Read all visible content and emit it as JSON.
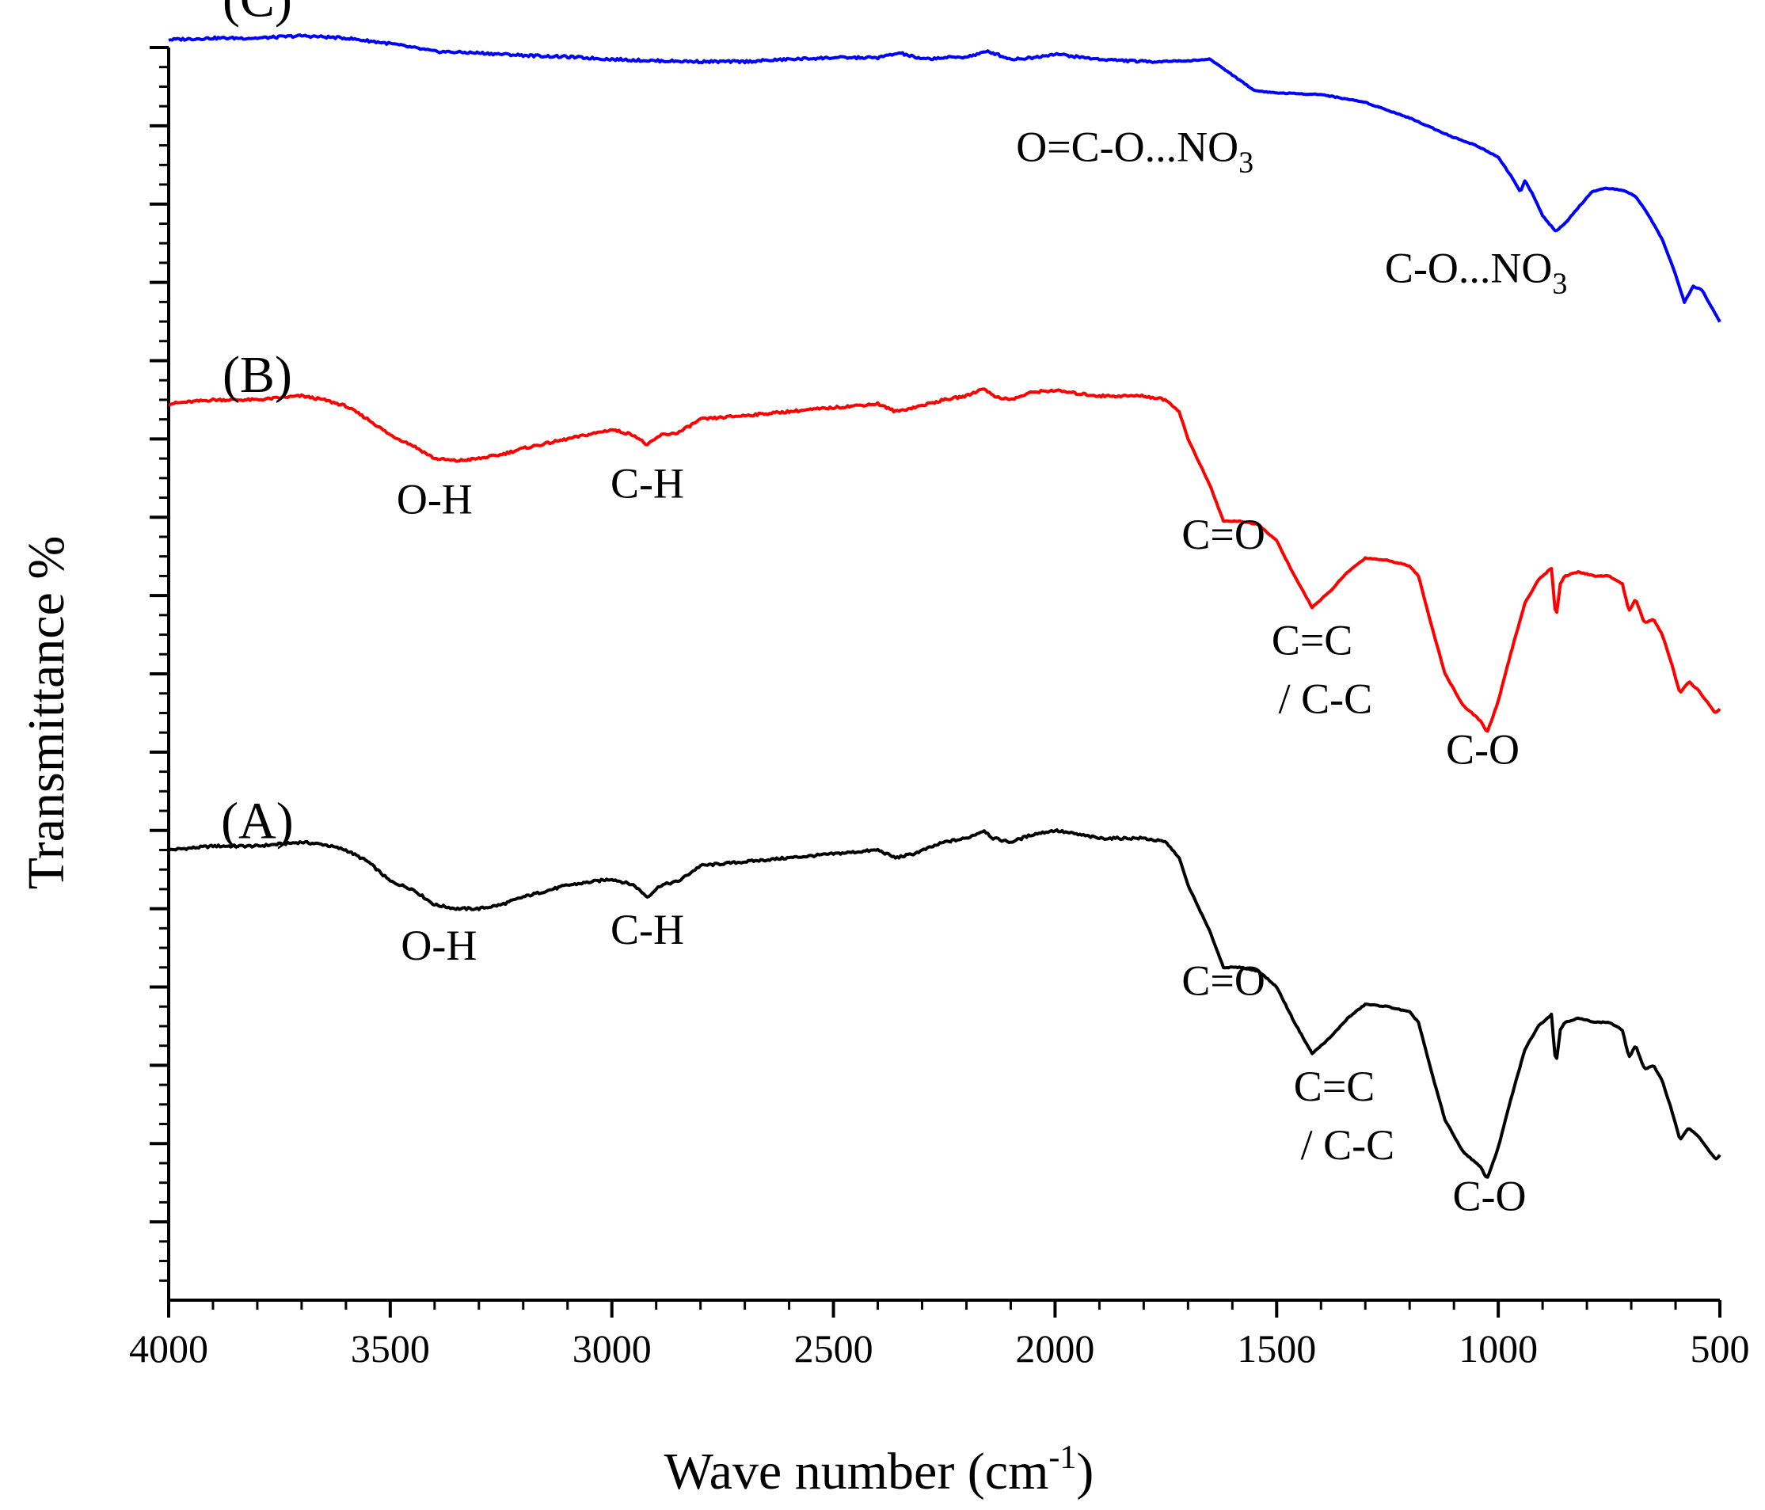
{
  "chart_data": {
    "type": "line",
    "title": "",
    "xlabel": "Wave number (cm",
    "xlabel_sup": "-1",
    "xlabel_close": ")",
    "ylabel": "Transmittance %",
    "xlim": [
      4000,
      500
    ],
    "x_reversed": true,
    "ylim": [
      0,
      16
    ],
    "x_ticks": [
      4000,
      3500,
      3000,
      2500,
      2000,
      1500,
      1000,
      500
    ],
    "y_major_ticks": [
      1,
      2,
      3,
      4,
      5,
      6,
      7,
      8,
      9,
      10,
      11,
      12,
      13,
      14,
      15,
      16
    ],
    "grid": false,
    "legend": "none",
    "series": [
      {
        "name": "(A)",
        "color": "#000000",
        "label_anchor": [
          3800,
          5.9
        ],
        "points": [
          [
            4000,
            5.75
          ],
          [
            3900,
            5.8
          ],
          [
            3800,
            5.8
          ],
          [
            3700,
            5.85
          ],
          [
            3650,
            5.82
          ],
          [
            3600,
            5.75
          ],
          [
            3550,
            5.6
          ],
          [
            3500,
            5.35
          ],
          [
            3450,
            5.25
          ],
          [
            3400,
            5.05
          ],
          [
            3350,
            5.0
          ],
          [
            3300,
            5.0
          ],
          [
            3250,
            5.05
          ],
          [
            3200,
            5.15
          ],
          [
            3100,
            5.3
          ],
          [
            3000,
            5.38
          ],
          [
            2950,
            5.3
          ],
          [
            2920,
            5.15
          ],
          [
            2890,
            5.3
          ],
          [
            2850,
            5.35
          ],
          [
            2800,
            5.55
          ],
          [
            2700,
            5.6
          ],
          [
            2600,
            5.65
          ],
          [
            2500,
            5.7
          ],
          [
            2400,
            5.75
          ],
          [
            2360,
            5.65
          ],
          [
            2320,
            5.7
          ],
          [
            2250,
            5.85
          ],
          [
            2200,
            5.9
          ],
          [
            2160,
            6.0
          ],
          [
            2140,
            5.9
          ],
          [
            2100,
            5.85
          ],
          [
            2050,
            5.95
          ],
          [
            2000,
            6.0
          ],
          [
            1950,
            5.95
          ],
          [
            1900,
            5.9
          ],
          [
            1800,
            5.9
          ],
          [
            1750,
            5.85
          ],
          [
            1720,
            5.65
          ],
          [
            1700,
            5.3
          ],
          [
            1650,
            4.7
          ],
          [
            1620,
            4.25
          ],
          [
            1580,
            4.25
          ],
          [
            1540,
            4.2
          ],
          [
            1500,
            4.0
          ],
          [
            1460,
            3.55
          ],
          [
            1420,
            3.15
          ],
          [
            1380,
            3.35
          ],
          [
            1340,
            3.6
          ],
          [
            1300,
            3.78
          ],
          [
            1250,
            3.75
          ],
          [
            1200,
            3.68
          ],
          [
            1180,
            3.55
          ],
          [
            1150,
            2.9
          ],
          [
            1120,
            2.3
          ],
          [
            1080,
            1.9
          ],
          [
            1040,
            1.7
          ],
          [
            1025,
            1.55
          ],
          [
            1000,
            1.95
          ],
          [
            970,
            2.6
          ],
          [
            940,
            3.2
          ],
          [
            910,
            3.5
          ],
          [
            880,
            3.65
          ],
          [
            870,
            3.0
          ],
          [
            860,
            3.45
          ],
          [
            850,
            3.55
          ],
          [
            820,
            3.6
          ],
          [
            780,
            3.55
          ],
          [
            750,
            3.55
          ],
          [
            720,
            3.45
          ],
          [
            705,
            3.1
          ],
          [
            690,
            3.25
          ],
          [
            670,
            2.95
          ],
          [
            650,
            3.0
          ],
          [
            630,
            2.8
          ],
          [
            610,
            2.45
          ],
          [
            590,
            2.05
          ],
          [
            570,
            2.2
          ],
          [
            550,
            2.1
          ],
          [
            530,
            1.95
          ],
          [
            510,
            1.8
          ],
          [
            500,
            1.85
          ]
        ]
      },
      {
        "name": "(B)",
        "color": "#ff0000",
        "label_anchor": [
          3800,
          11.6
        ],
        "points": [
          [
            4000,
            11.45
          ],
          [
            3900,
            11.5
          ],
          [
            3800,
            11.5
          ],
          [
            3700,
            11.55
          ],
          [
            3650,
            11.5
          ],
          [
            3600,
            11.42
          ],
          [
            3550,
            11.25
          ],
          [
            3500,
            11.05
          ],
          [
            3450,
            10.92
          ],
          [
            3400,
            10.75
          ],
          [
            3350,
            10.72
          ],
          [
            3300,
            10.75
          ],
          [
            3250,
            10.8
          ],
          [
            3200,
            10.88
          ],
          [
            3100,
            11.0
          ],
          [
            3000,
            11.12
          ],
          [
            2950,
            11.05
          ],
          [
            2920,
            10.92
          ],
          [
            2890,
            11.05
          ],
          [
            2850,
            11.08
          ],
          [
            2800,
            11.25
          ],
          [
            2700,
            11.3
          ],
          [
            2600,
            11.35
          ],
          [
            2500,
            11.4
          ],
          [
            2400,
            11.45
          ],
          [
            2360,
            11.35
          ],
          [
            2320,
            11.4
          ],
          [
            2250,
            11.5
          ],
          [
            2200,
            11.55
          ],
          [
            2160,
            11.65
          ],
          [
            2140,
            11.55
          ],
          [
            2100,
            11.5
          ],
          [
            2050,
            11.6
          ],
          [
            2000,
            11.62
          ],
          [
            1950,
            11.58
          ],
          [
            1900,
            11.55
          ],
          [
            1800,
            11.55
          ],
          [
            1750,
            11.5
          ],
          [
            1720,
            11.35
          ],
          [
            1700,
            11.0
          ],
          [
            1650,
            10.4
          ],
          [
            1620,
            9.95
          ],
          [
            1580,
            9.95
          ],
          [
            1540,
            9.9
          ],
          [
            1500,
            9.7
          ],
          [
            1460,
            9.25
          ],
          [
            1420,
            8.85
          ],
          [
            1380,
            9.05
          ],
          [
            1340,
            9.3
          ],
          [
            1300,
            9.48
          ],
          [
            1250,
            9.45
          ],
          [
            1200,
            9.38
          ],
          [
            1180,
            9.25
          ],
          [
            1150,
            8.6
          ],
          [
            1120,
            8.0
          ],
          [
            1080,
            7.6
          ],
          [
            1040,
            7.4
          ],
          [
            1025,
            7.25
          ],
          [
            1000,
            7.65
          ],
          [
            970,
            8.3
          ],
          [
            940,
            8.9
          ],
          [
            910,
            9.2
          ],
          [
            880,
            9.35
          ],
          [
            870,
            8.7
          ],
          [
            860,
            9.15
          ],
          [
            850,
            9.25
          ],
          [
            820,
            9.3
          ],
          [
            780,
            9.25
          ],
          [
            750,
            9.25
          ],
          [
            720,
            9.15
          ],
          [
            705,
            8.8
          ],
          [
            690,
            8.95
          ],
          [
            670,
            8.65
          ],
          [
            650,
            8.7
          ],
          [
            630,
            8.5
          ],
          [
            610,
            8.15
          ],
          [
            590,
            7.75
          ],
          [
            570,
            7.9
          ],
          [
            550,
            7.8
          ],
          [
            530,
            7.65
          ],
          [
            510,
            7.5
          ],
          [
            500,
            7.55
          ]
        ]
      },
      {
        "name": "(C)",
        "color": "#0000ff",
        "label_anchor": [
          3800,
          16.4
        ],
        "points": [
          [
            4000,
            16.1
          ],
          [
            3900,
            16.12
          ],
          [
            3800,
            16.12
          ],
          [
            3700,
            16.15
          ],
          [
            3600,
            16.12
          ],
          [
            3500,
            16.05
          ],
          [
            3400,
            15.95
          ],
          [
            3300,
            15.93
          ],
          [
            3200,
            15.9
          ],
          [
            3100,
            15.88
          ],
          [
            3000,
            15.85
          ],
          [
            2900,
            15.83
          ],
          [
            2800,
            15.82
          ],
          [
            2700,
            15.82
          ],
          [
            2600,
            15.85
          ],
          [
            2500,
            15.87
          ],
          [
            2400,
            15.87
          ],
          [
            2350,
            15.93
          ],
          [
            2300,
            15.85
          ],
          [
            2250,
            15.87
          ],
          [
            2200,
            15.88
          ],
          [
            2150,
            15.95
          ],
          [
            2100,
            15.85
          ],
          [
            2050,
            15.87
          ],
          [
            2000,
            15.92
          ],
          [
            1950,
            15.88
          ],
          [
            1900,
            15.85
          ],
          [
            1800,
            15.82
          ],
          [
            1700,
            15.83
          ],
          [
            1650,
            15.85
          ],
          [
            1600,
            15.65
          ],
          [
            1550,
            15.45
          ],
          [
            1500,
            15.42
          ],
          [
            1400,
            15.4
          ],
          [
            1300,
            15.3
          ],
          [
            1200,
            15.1
          ],
          [
            1100,
            14.85
          ],
          [
            1050,
            14.75
          ],
          [
            1000,
            14.6
          ],
          [
            970,
            14.35
          ],
          [
            950,
            14.15
          ],
          [
            940,
            14.3
          ],
          [
            920,
            14.1
          ],
          [
            900,
            13.85
          ],
          [
            870,
            13.65
          ],
          [
            850,
            13.75
          ],
          [
            820,
            13.95
          ],
          [
            790,
            14.15
          ],
          [
            760,
            14.2
          ],
          [
            720,
            14.18
          ],
          [
            690,
            14.1
          ],
          [
            660,
            13.85
          ],
          [
            630,
            13.55
          ],
          [
            600,
            13.1
          ],
          [
            580,
            12.75
          ],
          [
            560,
            12.95
          ],
          [
            540,
            12.9
          ],
          [
            520,
            12.7
          ],
          [
            500,
            12.5
          ]
        ]
      }
    ],
    "annotations": [
      {
        "text": "O-H",
        "x": 3400,
        "y": 10.05,
        "series": "(B)"
      },
      {
        "text": "C-H",
        "x": 2920,
        "y": 10.25,
        "series": "(B)"
      },
      {
        "text": "C=O",
        "x": 1620,
        "y": 9.6,
        "series": "(B)"
      },
      {
        "text": "C=C",
        "x": 1420,
        "y": 8.25,
        "series": "(B)"
      },
      {
        "text": "/ C-C",
        "x": 1390,
        "y": 7.5,
        "series": "(B)"
      },
      {
        "text": "C-O",
        "x": 1035,
        "y": 6.85,
        "series": "(B)"
      },
      {
        "text": "O-H",
        "x": 3390,
        "y": 4.35,
        "series": "(A)"
      },
      {
        "text": "C-H",
        "x": 2920,
        "y": 4.55,
        "series": "(A)"
      },
      {
        "text": "C=O",
        "x": 1620,
        "y": 3.9,
        "series": "(A)"
      },
      {
        "text": "C=C",
        "x": 1370,
        "y": 2.55,
        "series": "(A)"
      },
      {
        "text": "/ C-C",
        "x": 1340,
        "y": 1.8,
        "series": "(A)"
      },
      {
        "text": "C-O",
        "x": 1020,
        "y": 1.15,
        "series": "(A)"
      },
      {
        "text": "O=C-O...NO",
        "sub": "3",
        "x": 1820,
        "y": 14.55,
        "series": "(C)"
      },
      {
        "text": "C-O...NO",
        "sub": "3",
        "x": 1050,
        "y": 13.0,
        "series": "(C)"
      }
    ]
  }
}
